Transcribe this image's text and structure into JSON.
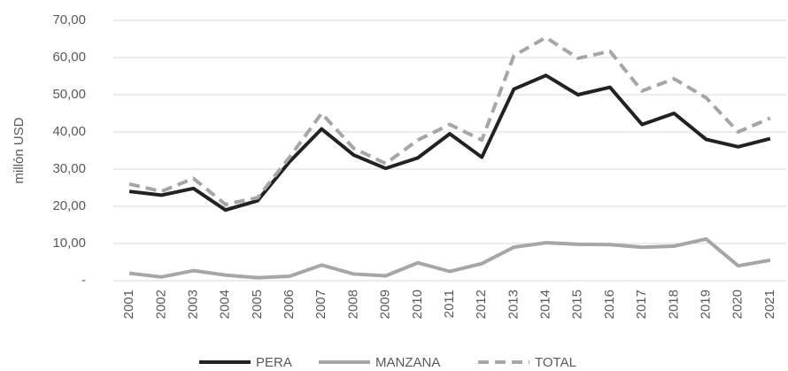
{
  "chart_data": {
    "type": "line",
    "y_label": "millón USD",
    "categories": [
      "2001",
      "2002",
      "2003",
      "2004",
      "2005",
      "2006",
      "2007",
      "2008",
      "2009",
      "2010",
      "2011",
      "2012",
      "2013",
      "2014",
      "2015",
      "2016",
      "2017",
      "2018",
      "2019",
      "2020",
      "2021"
    ],
    "series": [
      {
        "name": "PERA",
        "color": "#222222",
        "dash": false,
        "values": [
          24,
          23,
          24.8,
          19,
          21.5,
          32,
          40.8,
          33.8,
          30.2,
          33,
          39.5,
          33.2,
          51.5,
          55.2,
          50,
          52,
          42,
          45,
          38,
          36,
          38.2
        ]
      },
      {
        "name": "MANZANA",
        "color": "#a6a6a6",
        "dash": false,
        "values": [
          2,
          1,
          2.7,
          1.5,
          0.8,
          1.2,
          4.2,
          1.8,
          1.3,
          4.8,
          2.5,
          4.6,
          9,
          10.2,
          9.8,
          9.7,
          9,
          9.3,
          11.2,
          4,
          5.5
        ]
      },
      {
        "name": "TOTAL",
        "color": "#a6a6a6",
        "dash": true,
        "values": [
          26,
          24,
          27.5,
          20.5,
          22.3,
          33.2,
          45,
          35.6,
          31.5,
          37.8,
          42,
          37.8,
          60.5,
          65.4,
          59.8,
          61.7,
          51,
          54.3,
          49.2,
          40,
          43.7
        ]
      }
    ],
    "ylim": [
      0,
      70
    ],
    "yticks": [
      {
        "value": 0,
        "label": "-"
      },
      {
        "value": 10,
        "label": "10,00"
      },
      {
        "value": 20,
        "label": "20,00"
      },
      {
        "value": 30,
        "label": "30,00"
      },
      {
        "value": 40,
        "label": "40,00"
      },
      {
        "value": 50,
        "label": "50,00"
      },
      {
        "value": 60,
        "label": "60,00"
      },
      {
        "value": 70,
        "label": "70,00"
      }
    ],
    "grid": true
  }
}
